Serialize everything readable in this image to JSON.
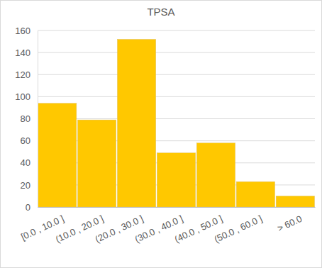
{
  "chart_data": {
    "type": "bar",
    "title": "TPSA",
    "categories": [
      "[0.0 , 10.0 ]",
      "(10.0 , 20.0 ]",
      "(20.0 , 30.0 ]",
      "(30.0 , 40.0 ]",
      "(40.0 , 50.0 ]",
      "(50.0 , 60.0 ]",
      "> 60.0"
    ],
    "values": [
      94,
      79,
      152,
      49,
      58,
      23,
      10
    ],
    "color": "#ffc800",
    "ylim": [
      0,
      160
    ],
    "yticks": [
      0,
      20,
      40,
      60,
      80,
      100,
      120,
      140,
      160
    ],
    "grid": true
  }
}
